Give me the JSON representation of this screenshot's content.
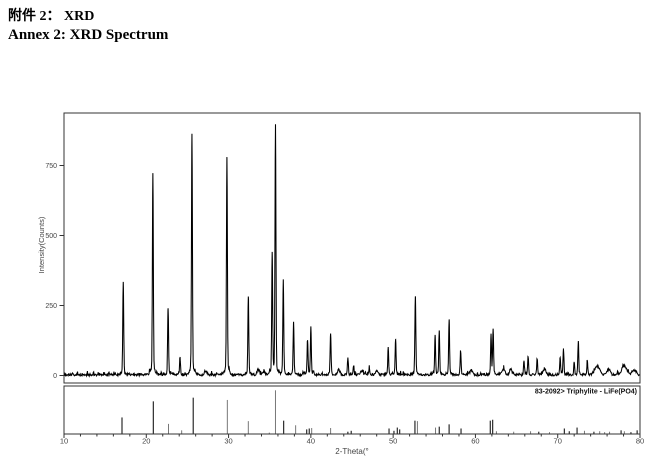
{
  "header": {
    "title_zh": "附件 2： XRD",
    "title_en": "Annex 2: XRD Spectrum"
  },
  "chart_data": {
    "type": "line",
    "title": "",
    "xlabel": "2-Theta(°",
    "ylabel": "Intensity(Counts)",
    "xlim": [
      10,
      80
    ],
    "ylim": [
      0,
      940
    ],
    "x_ticks": [
      10,
      20,
      30,
      40,
      50,
      60,
      70,
      80
    ],
    "y_ticks": [
      0,
      250,
      500,
      750
    ],
    "grid": false,
    "legend_position": "none",
    "reference_label": "83-2092> Triphylite - LiFe(PO4)",
    "peaks_units": "[two_theta_deg, intensity_counts, optional_width_px]",
    "peaks": [
      [
        17.2,
        330
      ],
      [
        20.8,
        722
      ],
      [
        22.65,
        240
      ],
      [
        24.1,
        61
      ],
      [
        25.55,
        861
      ],
      [
        27.2,
        14,
        1.2
      ],
      [
        29.8,
        776
      ],
      [
        32.4,
        278
      ],
      [
        33.6,
        18,
        1.2
      ],
      [
        34.3,
        12,
        1.2
      ],
      [
        35.3,
        430
      ],
      [
        35.7,
        885
      ],
      [
        36.65,
        330
      ],
      [
        37.9,
        186
      ],
      [
        39.6,
        121
      ],
      [
        40.0,
        169
      ],
      [
        42.4,
        148
      ],
      [
        43.4,
        18,
        1.2
      ],
      [
        44.5,
        61
      ],
      [
        45.2,
        31
      ],
      [
        46.2,
        12,
        1.5
      ],
      [
        47.1,
        25
      ],
      [
        48.0,
        14,
        1.2
      ],
      [
        49.4,
        97
      ],
      [
        50.3,
        127
      ],
      [
        52.7,
        281
      ],
      [
        55.1,
        139
      ],
      [
        55.6,
        156
      ],
      [
        56.8,
        195
      ],
      [
        58.2,
        87
      ],
      [
        59.5,
        15,
        1.5
      ],
      [
        61.9,
        140
      ],
      [
        62.15,
        162
      ],
      [
        63.4,
        22,
        1.5
      ],
      [
        64.3,
        20,
        1.2
      ],
      [
        65.9,
        49
      ],
      [
        66.4,
        67
      ],
      [
        67.5,
        55
      ],
      [
        68.4,
        20,
        1.5
      ],
      [
        70.3,
        61
      ],
      [
        70.7,
        91
      ],
      [
        72.0,
        44
      ],
      [
        72.5,
        115
      ],
      [
        73.6,
        49
      ],
      [
        74.8,
        31,
        2.5
      ],
      [
        76.2,
        20,
        1.5
      ],
      [
        78.1,
        31,
        2.5
      ],
      [
        79.3,
        15,
        2
      ]
    ],
    "reference_sticks_units": "[two_theta_deg, relative_height_pct]",
    "reference_sticks": [
      [
        17.05,
        36
      ],
      [
        20.85,
        71
      ],
      [
        22.7,
        22
      ],
      [
        24.3,
        8
      ],
      [
        25.7,
        79
      ],
      [
        29.85,
        74
      ],
      [
        32.4,
        28
      ],
      [
        34.95,
        3
      ],
      [
        35.7,
        95
      ],
      [
        36.7,
        29
      ],
      [
        38.15,
        19
      ],
      [
        39.5,
        10
      ],
      [
        39.8,
        12
      ],
      [
        40.1,
        13
      ],
      [
        42.4,
        13
      ],
      [
        44.5,
        5
      ],
      [
        44.9,
        7
      ],
      [
        49.5,
        12
      ],
      [
        50.1,
        7
      ],
      [
        50.5,
        14
      ],
      [
        50.8,
        10
      ],
      [
        52.65,
        29
      ],
      [
        52.95,
        28
      ],
      [
        55.15,
        14
      ],
      [
        55.6,
        16
      ],
      [
        56.8,
        21
      ],
      [
        58.25,
        12
      ],
      [
        61.8,
        29
      ],
      [
        62.1,
        31
      ],
      [
        62.55,
        6
      ],
      [
        64.65,
        5
      ],
      [
        66.7,
        6
      ],
      [
        67.7,
        5
      ],
      [
        69.0,
        4
      ],
      [
        70.8,
        12
      ],
      [
        71.4,
        6
      ],
      [
        72.35,
        14
      ],
      [
        73.25,
        7
      ],
      [
        74.4,
        5
      ],
      [
        75.1,
        6
      ],
      [
        75.7,
        4
      ],
      [
        76.3,
        5
      ],
      [
        77.7,
        8
      ],
      [
        78.1,
        6
      ],
      [
        78.9,
        4
      ],
      [
        79.65,
        8
      ]
    ]
  }
}
